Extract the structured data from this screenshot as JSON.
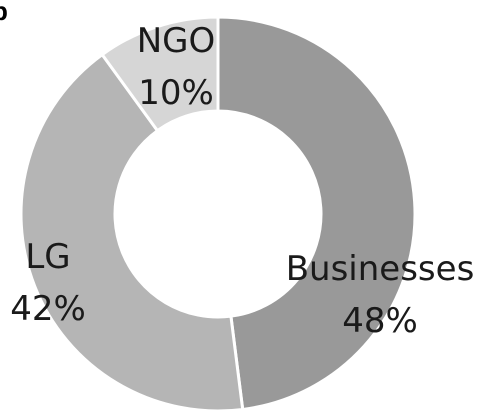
{
  "panel_label": "b",
  "chart_data": {
    "type": "pie",
    "donut": true,
    "start_angle_deg": 0,
    "direction": "clockwise",
    "legend": "none",
    "slices": [
      {
        "label": "Businesses",
        "value_text": "48%",
        "value": 48,
        "color": "#999999"
      },
      {
        "label": "LG",
        "value_text": "42%",
        "value": 42,
        "color": "#b5b5b5"
      },
      {
        "label": "NGO",
        "value_text": "10%",
        "value": 10,
        "color": "#d6d6d6"
      }
    ]
  }
}
